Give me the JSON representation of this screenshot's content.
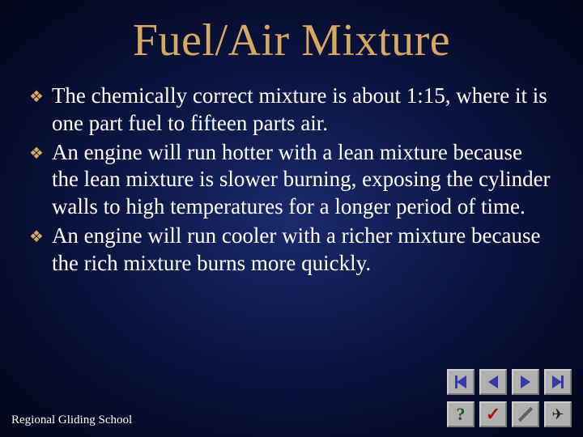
{
  "title": "Fuel/Air Mixture",
  "bullets": [
    "The chemically correct mixture is about 1:15, where it is one part fuel to fifteen parts air.",
    "An engine will run hotter with a lean mixture because the lean mixture is slower burning, exposing the cylinder walls to high temperatures for a longer period of time.",
    "An engine will run cooler with a richer mixture because the rich mixture burns more quickly."
  ],
  "footer": "Regional Gliding School",
  "colors": {
    "title": "#d8a860",
    "bullet": "#d8a860",
    "text": "#ffffff",
    "bg_center": "#1a2a6c",
    "bg_outer": "#020518",
    "button_bg": "#b0b0b0",
    "arrow": "#3838a8"
  },
  "typography": {
    "title_size": 56,
    "body_size": 27,
    "footer_size": 15,
    "family": "Times New Roman"
  }
}
